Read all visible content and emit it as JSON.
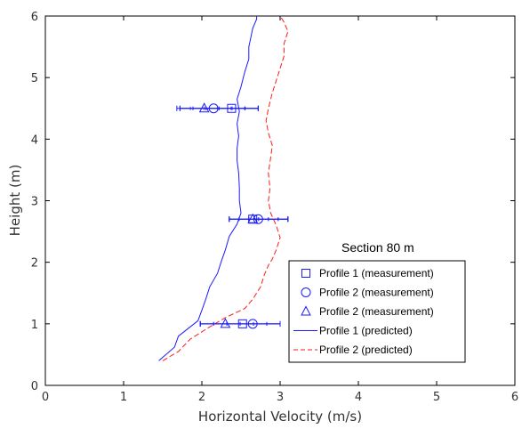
{
  "chart_data": {
    "type": "line",
    "xlabel": "Horizontal Velocity (m/s)",
    "ylabel": "Height (m)",
    "xlim": [
      0,
      6
    ],
    "ylim": [
      0,
      6
    ],
    "x_ticks": [
      "0",
      "1",
      "2",
      "3",
      "4",
      "5",
      "6"
    ],
    "y_ticks": [
      "0",
      "1",
      "2",
      "3",
      "4",
      "5",
      "6"
    ],
    "grid": false,
    "annotation": "Section 80 m",
    "legend_position": "lower-right",
    "colors": {
      "blue": "#1a1aff",
      "red": "#ff1a1a"
    },
    "lines": [
      {
        "name": "Profile 1 (predicted)",
        "color": "#1a1aff",
        "style": "solid",
        "points": [
          [
            1.45,
            0.4
          ],
          [
            1.65,
            0.62
          ],
          [
            1.7,
            0.8
          ],
          [
            1.8,
            0.9
          ],
          [
            1.95,
            1.05
          ],
          [
            2.0,
            1.22
          ],
          [
            2.05,
            1.4
          ],
          [
            2.1,
            1.6
          ],
          [
            2.2,
            1.82
          ],
          [
            2.25,
            2.02
          ],
          [
            2.3,
            2.2
          ],
          [
            2.35,
            2.42
          ],
          [
            2.45,
            2.62
          ],
          [
            2.5,
            2.8
          ],
          [
            2.48,
            3.0
          ],
          [
            2.48,
            3.2
          ],
          [
            2.47,
            3.45
          ],
          [
            2.45,
            3.65
          ],
          [
            2.45,
            3.85
          ],
          [
            2.47,
            4.05
          ],
          [
            2.45,
            4.25
          ],
          [
            2.48,
            4.45
          ],
          [
            2.45,
            4.65
          ],
          [
            2.5,
            4.85
          ],
          [
            2.55,
            5.1
          ],
          [
            2.6,
            5.3
          ],
          [
            2.6,
            5.5
          ],
          [
            2.62,
            5.62
          ],
          [
            2.65,
            5.8
          ],
          [
            2.7,
            5.95
          ],
          [
            2.7,
            6.0
          ]
        ]
      },
      {
        "name": "Profile 2 (predicted)",
        "color": "#ff1a1a",
        "style": "dashed",
        "points": [
          [
            1.5,
            0.4
          ],
          [
            1.7,
            0.55
          ],
          [
            1.85,
            0.75
          ],
          [
            2.1,
            0.95
          ],
          [
            2.3,
            1.1
          ],
          [
            2.55,
            1.25
          ],
          [
            2.65,
            1.4
          ],
          [
            2.75,
            1.6
          ],
          [
            2.8,
            1.8
          ],
          [
            2.85,
            1.95
          ],
          [
            2.9,
            2.05
          ],
          [
            2.95,
            2.2
          ],
          [
            3.0,
            2.4
          ],
          [
            2.95,
            2.6
          ],
          [
            2.88,
            2.8
          ],
          [
            2.85,
            3.0
          ],
          [
            2.87,
            3.2
          ],
          [
            2.85,
            3.45
          ],
          [
            2.88,
            3.7
          ],
          [
            2.9,
            3.9
          ],
          [
            2.85,
            4.1
          ],
          [
            2.82,
            4.3
          ],
          [
            2.85,
            4.5
          ],
          [
            2.9,
            4.75
          ],
          [
            2.95,
            4.95
          ],
          [
            3.0,
            5.15
          ],
          [
            3.05,
            5.35
          ],
          [
            3.05,
            5.55
          ],
          [
            3.1,
            5.75
          ],
          [
            3.05,
            5.9
          ],
          [
            3.0,
            6.0
          ]
        ]
      }
    ],
    "series": [
      {
        "name": "Profile 1 (measurement)",
        "marker": "square",
        "color": "#1a1aff",
        "points": [
          {
            "x": 2.38,
            "y": 4.5,
            "xerr_min": 1.72,
            "xerr_max": 2.72
          },
          {
            "x": 2.65,
            "y": 2.7,
            "xerr_min": 2.35,
            "xerr_max": 3.1
          },
          {
            "x": 2.52,
            "y": 1.0,
            "xerr_min": 1.98,
            "xerr_max": 3.0
          }
        ]
      },
      {
        "name": "Profile 2 (measurement)",
        "marker": "circle",
        "color": "#1a1aff",
        "points": [
          {
            "x": 2.15,
            "y": 4.5,
            "xerr_min": 1.68,
            "xerr_max": 2.72
          },
          {
            "x": 2.72,
            "y": 2.7,
            "xerr_min": 2.35,
            "xerr_max": 3.1
          },
          {
            "x": 2.65,
            "y": 1.0,
            "xerr_min": 1.98,
            "xerr_max": 3.0
          }
        ]
      },
      {
        "name": "Profile 2 (measurement)",
        "marker": "triangle",
        "color": "#1a1aff",
        "points": [
          {
            "x": 2.03,
            "y": 4.5,
            "xerr_min": 1.72,
            "xerr_max": 2.72
          },
          {
            "x": 2.65,
            "y": 2.7,
            "xerr_min": 2.35,
            "xerr_max": 3.1
          },
          {
            "x": 2.3,
            "y": 1.0,
            "xerr_min": 1.98,
            "xerr_max": 3.0
          }
        ]
      }
    ],
    "legend": [
      {
        "label": "Profile 1 (measurement)",
        "kind": "marker",
        "marker": "square",
        "color": "#1a1aff"
      },
      {
        "label": "Profile 2 (measurement)",
        "kind": "marker",
        "marker": "circle",
        "color": "#1a1aff"
      },
      {
        "label": "Profile 2 (measurement)",
        "kind": "marker",
        "marker": "triangle",
        "color": "#1a1aff"
      },
      {
        "label": "Profile 1 (predicted)",
        "kind": "line",
        "style": "solid",
        "color": "#1a1aff"
      },
      {
        "label": "Profile 2 (predicted)",
        "kind": "line",
        "style": "dashed",
        "color": "#ff1a1a"
      }
    ]
  }
}
